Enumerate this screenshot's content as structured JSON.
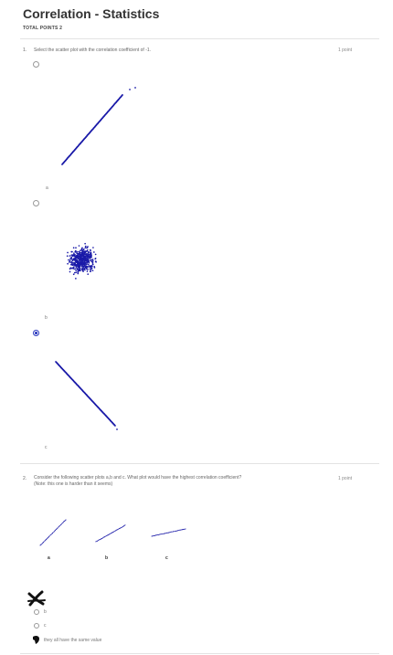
{
  "form": {
    "title": "Correlation - Statistics",
    "total_points": "TOTAL POINTS 2"
  },
  "q1": {
    "number": "1.",
    "text": "Select the scatter plot with the correlation coefficient of -1.",
    "points": "1 point",
    "options": [
      {
        "label": "a",
        "selected": false
      },
      {
        "label": "b",
        "selected": false
      },
      {
        "label": "c",
        "selected": true
      }
    ],
    "accent_color": "#2c3bbf",
    "plot_color": "#1a1aa8"
  },
  "q2": {
    "number": "2.",
    "text_line1": "Consider the following scatter plots a,b and c. What plot would have the highest correlation coefficient?",
    "text_line2": "(Note: this one is harder than it seems)",
    "points": "1 point",
    "figure_labels": [
      "a",
      "b",
      "c"
    ],
    "options": [
      {
        "label": "a",
        "selected": false,
        "marked_wrong": true
      },
      {
        "label": "b",
        "selected": false
      },
      {
        "label": "c",
        "selected": false
      },
      {
        "label": "they all have the same value",
        "selected": true
      }
    ]
  }
}
